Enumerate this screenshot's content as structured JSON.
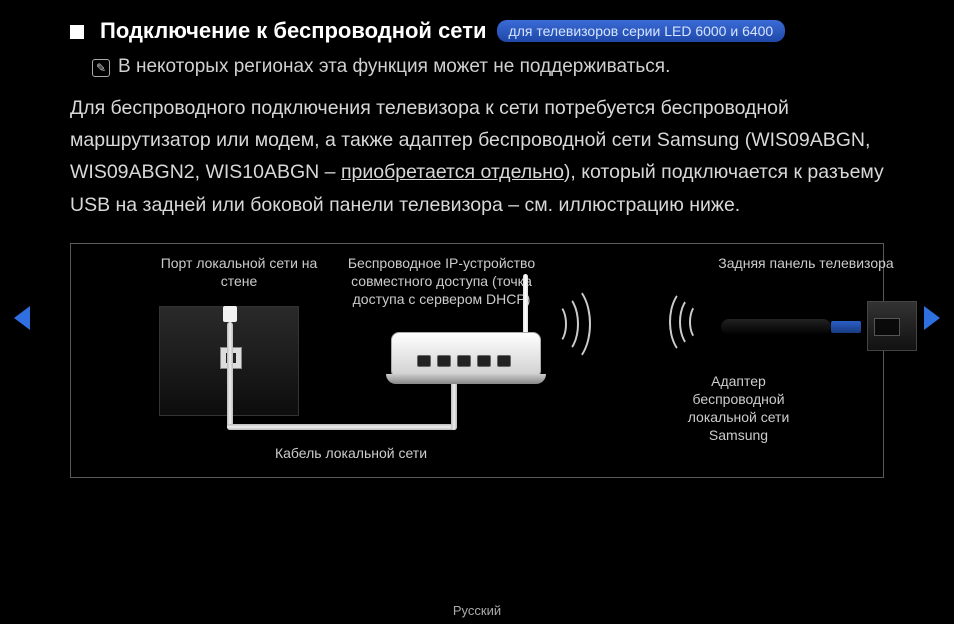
{
  "colors": {
    "background": "#000000",
    "text": "#e8e8e8",
    "badge_bg_top": "#3a6bd6",
    "badge_bg_bottom": "#1f48a8",
    "arrow": "#2f6fe0",
    "diagram_border": "#5a5a5a"
  },
  "heading": {
    "title": "Подключение к беспроводной сети",
    "badge": "для телевизоров серии LED 6000 и 6400"
  },
  "note": "В некоторых регионах эта функция может не поддерживаться.",
  "body": {
    "pre": "Для беспроводного подключения телевизора к сети потребуется беспроводной маршрутизатор или модем, а также адаптер беспроводной сети Samsung (WIS09ABGN, WIS09ABGN2, WIS10ABGN – ",
    "underlined": "приобретается отдельно",
    "post": "), который подключается к разъему USB на задней или боковой панели телевизора – см. иллюстрацию ниже."
  },
  "diagram": {
    "wall_port_label": "Порт локальной сети на стене",
    "router_label": "Беспроводное IP-устройство совместного доступа (точка доступа с сервером DHCP)",
    "tv_back_label": "Задняя панель телевизора",
    "adapter_label": "Адаптер беспроводной локальной сети Samsung",
    "lan_cable_label": "Кабель локальной сети"
  },
  "footer": {
    "language": "Русский"
  }
}
